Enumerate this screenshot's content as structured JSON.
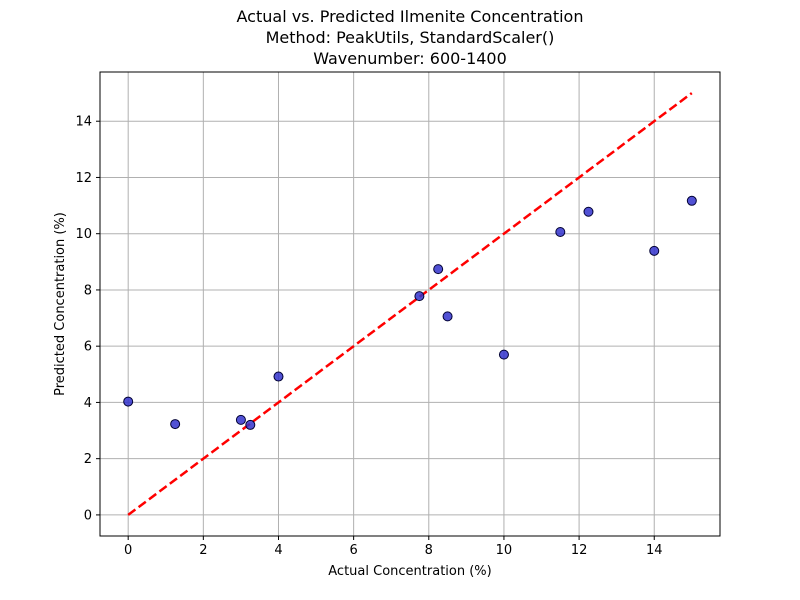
{
  "chart_data": {
    "type": "scatter",
    "title_lines": [
      "Actual vs. Predicted Ilmenite Concentration",
      "Method: PeakUtils, StandardScaler()",
      "Wavenumber: 600-1400"
    ],
    "xlabel": "Actual Concentration (%)",
    "ylabel": "Predicted Concentration (%)",
    "xlim": [
      -0.75,
      15.75
    ],
    "ylim": [
      -0.75,
      15.75
    ],
    "xticks": [
      0,
      2,
      4,
      6,
      8,
      10,
      12,
      14
    ],
    "yticks": [
      0,
      2,
      4,
      6,
      8,
      10,
      12,
      14
    ],
    "grid": true,
    "legend": "none",
    "points": [
      {
        "x": 0,
        "y": 4.03
      },
      {
        "x": 1.25,
        "y": 3.23
      },
      {
        "x": 3.0,
        "y": 3.38
      },
      {
        "x": 3.25,
        "y": 3.2
      },
      {
        "x": 4.0,
        "y": 4.92
      },
      {
        "x": 7.75,
        "y": 7.78
      },
      {
        "x": 8.25,
        "y": 8.74
      },
      {
        "x": 8.5,
        "y": 7.06
      },
      {
        "x": 10.0,
        "y": 5.7
      },
      {
        "x": 11.5,
        "y": 10.06
      },
      {
        "x": 12.25,
        "y": 10.78
      },
      {
        "x": 14.0,
        "y": 9.39
      },
      {
        "x": 15.0,
        "y": 11.17
      }
    ],
    "reference_line": {
      "x": [
        0,
        15
      ],
      "y": [
        0,
        15
      ],
      "style": "dashed"
    },
    "colors": {
      "points_fill": "#3333cc",
      "points_edge": "#000033",
      "reference_line": "#ff0000",
      "grid": "#b0b0b0"
    }
  }
}
